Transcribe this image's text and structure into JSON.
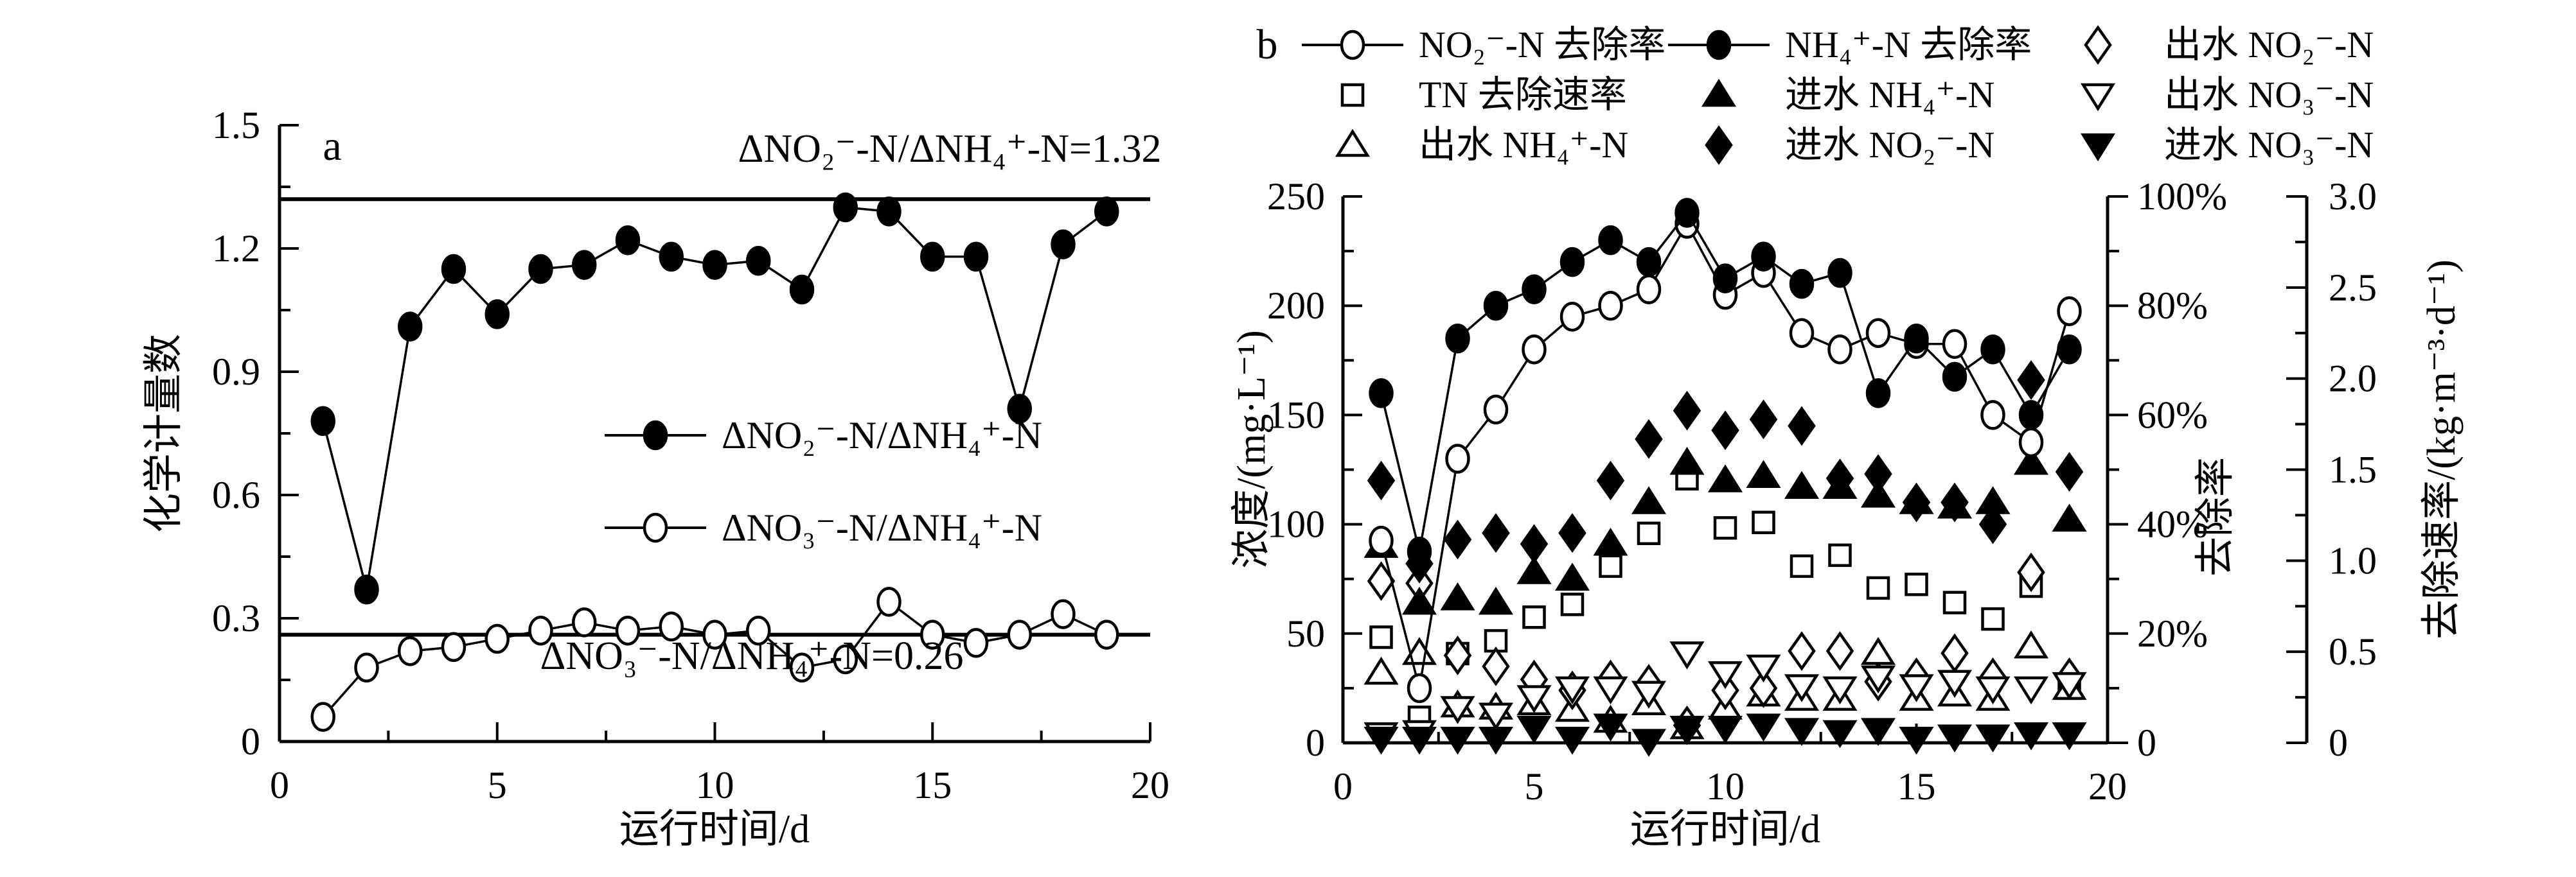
{
  "panels": {
    "a": "a",
    "b": "b"
  },
  "chart_data": [
    {
      "id": "panel-a",
      "type": "line",
      "xlabel": "运行时间/d",
      "ylabel": "化学计量数",
      "xlim": [
        0,
        20
      ],
      "ylim": [
        0,
        1.5
      ],
      "xtick_labels": [
        "0",
        "5",
        "10",
        "15",
        "20"
      ],
      "ytick_labels": [
        "0",
        "0.3",
        "0.6",
        "0.9",
        "1.2",
        "1.5"
      ],
      "grid": "off",
      "x": [
        1,
        2,
        3,
        4,
        5,
        6,
        7,
        8,
        9,
        10,
        11,
        12,
        13,
        14,
        15,
        16,
        17,
        18,
        19
      ],
      "series": [
        {
          "name": "ΔNO₂⁻-N/ΔNH₄⁺-N",
          "marker": "circle-filled",
          "line": true,
          "values": [
            0.78,
            0.37,
            1.01,
            1.15,
            1.04,
            1.15,
            1.16,
            1.22,
            1.18,
            1.16,
            1.17,
            1.1,
            1.3,
            1.29,
            1.18,
            1.18,
            0.81,
            1.21,
            1.29
          ]
        },
        {
          "name": "ΔNO₃⁻-N/ΔNH₄⁺-N",
          "marker": "circle-open",
          "line": true,
          "values": [
            0.06,
            0.18,
            0.22,
            0.23,
            0.25,
            0.27,
            0.29,
            0.27,
            0.28,
            0.26,
            0.27,
            0.18,
            0.2,
            0.34,
            0.26,
            0.24,
            0.26,
            0.31,
            0.26
          ]
        }
      ],
      "ref_lines": [
        {
          "y": 1.32,
          "label": "ΔNO₂⁻-N/ΔNH₄⁺-N=1.32"
        },
        {
          "y": 0.26,
          "label": "ΔNO₃⁻-N/ΔNH₄⁺-N=0.26"
        }
      ]
    },
    {
      "id": "panel-b",
      "type": "line-scatter",
      "xlabel": "运行时间/d",
      "xlim": [
        0,
        20
      ],
      "xtick_labels": [
        "0",
        "5",
        "10",
        "15",
        "20"
      ],
      "grid": "off",
      "axes": {
        "conc": {
          "label": "浓度/(mg·L⁻¹)",
          "lim": [
            0,
            250
          ],
          "tick_labels": [
            "0",
            "50",
            "100",
            "150",
            "200",
            "250"
          ]
        },
        "percent": {
          "label": "去除率",
          "lim": [
            0,
            100
          ],
          "tick_labels": [
            "0",
            "20%",
            "40%",
            "60%",
            "80%",
            "100%"
          ]
        },
        "rate": {
          "label": "去除速率/(kg·m⁻³·d⁻¹)",
          "lim": [
            0,
            3.0
          ],
          "tick_labels": [
            "0",
            "0.5",
            "1.0",
            "1.5",
            "2.0",
            "2.5",
            "3.0"
          ]
        }
      },
      "x": [
        1,
        2,
        3,
        4,
        5,
        6,
        7,
        8,
        9,
        10,
        11,
        12,
        13,
        14,
        15,
        16,
        17,
        18,
        19
      ],
      "series": [
        {
          "name": "NO₂⁻-N 去除率",
          "marker": "circle-open",
          "line": true,
          "axis": "percent",
          "values": [
            37,
            10,
            52,
            61,
            72,
            78,
            80,
            83,
            95,
            82,
            86,
            75,
            72,
            75,
            73,
            73,
            60,
            55,
            79
          ]
        },
        {
          "name": "NH₄⁺-N 去除率",
          "marker": "circle-filled",
          "line": true,
          "axis": "percent",
          "values": [
            64,
            35,
            74,
            80,
            83,
            88,
            92,
            88,
            97,
            85,
            89,
            84,
            86,
            64,
            74,
            67,
            72,
            60,
            72
          ]
        },
        {
          "name": "出水 NO₂⁻-N",
          "marker": "diamond-open",
          "line": false,
          "axis": "conc",
          "values": [
            74,
            73,
            40,
            35,
            29,
            24,
            29,
            27,
            8,
            24,
            25,
            42,
            42,
            28,
            30,
            41,
            30,
            78,
            30
          ]
        },
        {
          "name": "TN 去除速率",
          "marker": "square-open",
          "line": false,
          "axis": "rate",
          "values": [
            0.58,
            0.14,
            0.49,
            0.56,
            0.69,
            0.76,
            0.97,
            1.15,
            1.45,
            1.18,
            1.21,
            0.97,
            1.03,
            0.85,
            0.87,
            0.77,
            0.68,
            0.86,
            0.3
          ]
        },
        {
          "name": "进水 NH₄⁺-N",
          "marker": "triangle-up-filled",
          "line": false,
          "axis": "conc",
          "values": [
            90,
            64,
            66,
            64,
            78,
            75,
            91,
            110,
            128,
            120,
            122,
            117,
            117,
            113,
            110,
            108,
            110,
            128,
            102
          ]
        },
        {
          "name": "出水 NO₃⁻-N",
          "marker": "triangle-down-open",
          "line": false,
          "axis": "conc",
          "values": [
            4,
            5,
            16,
            13,
            21,
            25,
            25,
            23,
            41,
            32,
            35,
            26,
            25,
            30,
            26,
            28,
            25,
            25,
            27
          ]
        },
        {
          "name": "出水 NH₄⁺-N",
          "marker": "triangle-up-open",
          "line": false,
          "axis": "conc",
          "values": [
            32,
            41,
            17,
            16,
            18,
            15,
            10,
            18,
            7,
            16,
            22,
            20,
            20,
            41,
            20,
            22,
            20,
            44,
            25
          ]
        },
        {
          "name": "进水 NO₂⁻-N",
          "marker": "diamond-filled",
          "line": false,
          "axis": "conc",
          "values": [
            120,
            82,
            93,
            96,
            91,
            96,
            120,
            139,
            152,
            143,
            148,
            145,
            121,
            123,
            110,
            110,
            100,
            166,
            124
          ]
        },
        {
          "name": "进水 NO₃⁻-N",
          "marker": "triangle-down-filled",
          "line": false,
          "axis": "conc",
          "values": [
            2,
            2,
            2,
            2,
            7,
            2,
            8,
            1,
            7,
            7,
            8,
            6,
            5,
            6,
            2,
            3,
            3,
            4,
            4
          ]
        }
      ]
    }
  ]
}
